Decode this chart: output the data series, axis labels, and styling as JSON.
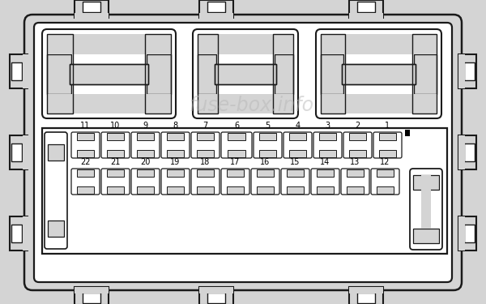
{
  "bg_color": "#d4d4d4",
  "white_fill": "#ffffff",
  "edge_color": "#1a1a1a",
  "watermark": "fuse-box.info",
  "wm_color": "#b8b8b8",
  "row1_labels": [
    "11",
    "10",
    "9",
    "8",
    "7",
    "6",
    "5",
    "4",
    "3",
    "2",
    "1"
  ],
  "row2_labels": [
    "22",
    "21",
    "20",
    "19",
    "18",
    "17",
    "16",
    "15",
    "14",
    "13",
    "12"
  ]
}
